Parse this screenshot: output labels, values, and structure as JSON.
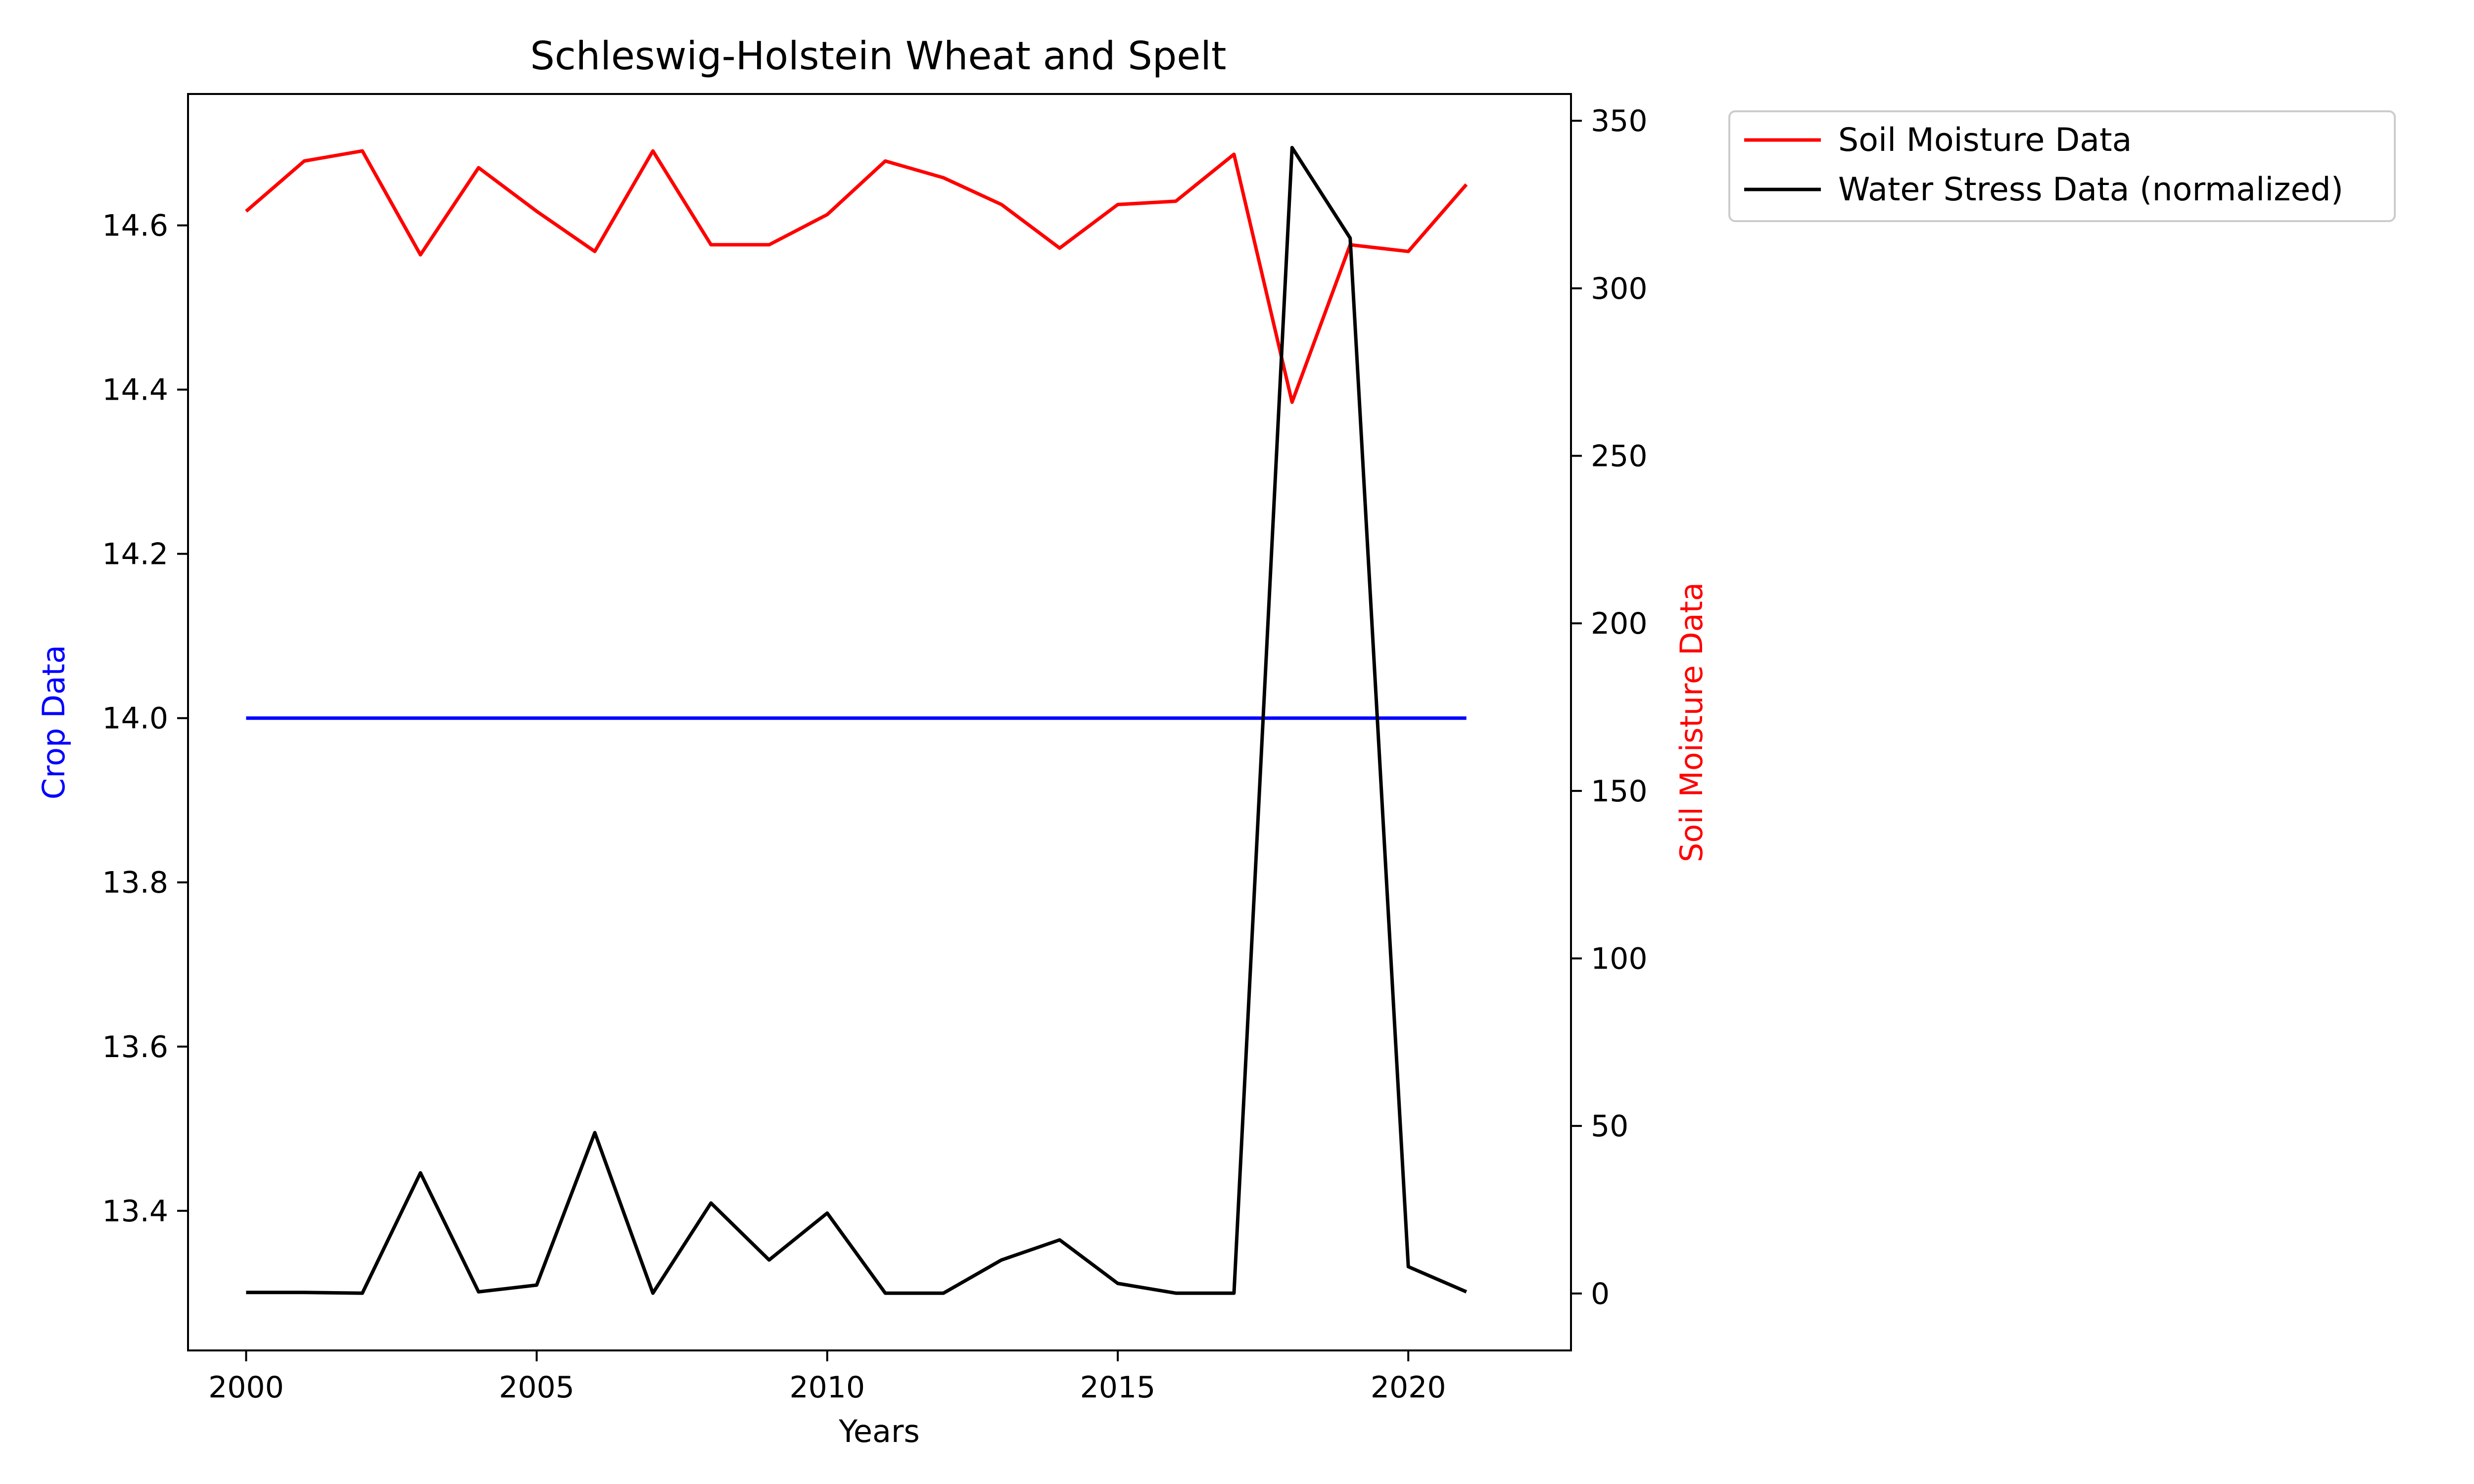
{
  "chart_data": {
    "type": "line",
    "title": "Schleswig-Holstein Wheat and Spelt",
    "xlabel": "Years",
    "ylabel_left": "Crop Data",
    "ylabel_right": "Soil Moisture Data",
    "xlim": [
      1999,
      2022.8
    ],
    "ylim_left": [
      13.23,
      14.76
    ],
    "ylim_right": [
      -17,
      358
    ],
    "x_ticks": [
      2000,
      2005,
      2010,
      2015,
      2020
    ],
    "y_left_ticks": [
      "13.4",
      "13.6",
      "13.8",
      "14.0",
      "14.2",
      "14.4",
      "14.6"
    ],
    "y_right_ticks": [
      "0",
      "50",
      "100",
      "150",
      "200",
      "250",
      "300",
      "350"
    ],
    "grid": false,
    "legend_position": "outside right",
    "x": [
      2000,
      2001,
      2002,
      2003,
      2004,
      2005,
      2006,
      2007,
      2008,
      2009,
      2010,
      2011,
      2012,
      2013,
      2014,
      2015,
      2016,
      2017,
      2018,
      2019,
      2020,
      2021
    ],
    "series": [
      {
        "axis": "left",
        "color": "#0000ff",
        "values": [
          14.0,
          14.0,
          14.0,
          14.0,
          14.0,
          14.0,
          14.0,
          14.0,
          14.0,
          14.0,
          14.0,
          14.0,
          14.0,
          14.0,
          14.0,
          14.0,
          14.0,
          14.0,
          14.0,
          14.0,
          14.0,
          14.0
        ]
      },
      {
        "name": "Soil Moisture Data",
        "axis": "right",
        "color": "#ff0000",
        "values": [
          323,
          338,
          341,
          310,
          336,
          323,
          311,
          341,
          313,
          313,
          322,
          338,
          333,
          325,
          312,
          325,
          326,
          340,
          266,
          313,
          311,
          331
        ]
      },
      {
        "name": "Water Stress Data (normalized)",
        "axis": "right",
        "color": "#000000",
        "values": [
          0.3,
          0.3,
          0.1,
          36,
          0.5,
          2.5,
          48,
          0.1,
          27,
          10,
          24,
          0.1,
          0.1,
          10,
          16,
          3,
          0.1,
          0.1,
          342,
          315,
          8,
          0.5
        ]
      }
    ]
  },
  "colors": {
    "left_axis_label": "#0000ff",
    "right_axis_label": "#ff0000"
  }
}
